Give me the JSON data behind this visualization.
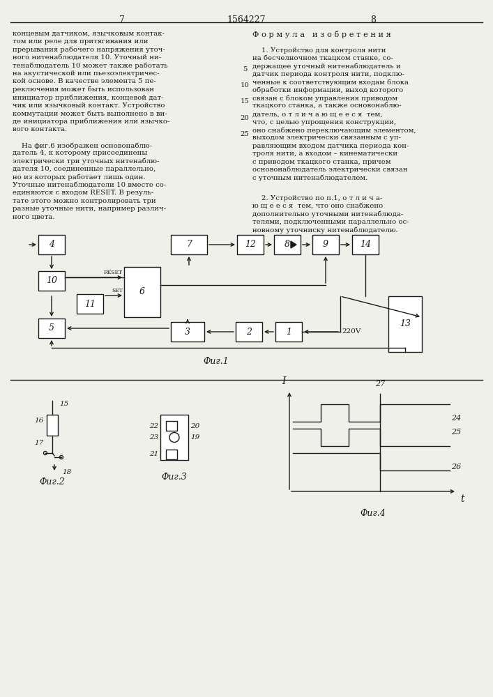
{
  "page_title": "1564227",
  "page_left": "7",
  "page_right": "8",
  "bg_color": "#f0f0eb",
  "text_color": "#1a1a1a",
  "left_text": [
    "концевым датчиком, язычковым контак-",
    "том или реле для притягивания или",
    "прерывания рабочего напряжения уточ-",
    "ного нитенаблюдателя 10. Уточный ни-",
    "тенаблюдатель 10 может также работать",
    "на акустической или пьезоэлектричес-",
    "кой основе. В качестве элемента 5 пе-",
    "реключения может быть использован",
    "инициатор приближения, концевой дат-",
    "чик или язычковый контакт. Устройство",
    "коммутации может быть выполнено в ви-",
    "де инициатора приближения или язычко-",
    "вого контакта."
  ],
  "left_text2": [
    "    На фиг.6 изображен основонаблю-",
    "датель 4, к которому присоединены",
    "электрически три уточных нитенаблю-",
    "дателя 10, соединенные параллельно,",
    "но из которых работает лишь один.",
    "Уточные нитенаблюдатели 10 вместе со-",
    "единяются с входом RESET. В резуль-",
    "тате этого можно контролировать три",
    "разные уточные нити, например различ-",
    "ного цвета."
  ],
  "right_header": "Ф о р м у л а   и з о б р е т е н и я",
  "right_text": [
    "    1. Устройство для контроля нити",
    "на бесчелночном ткацком станке, со-",
    "держащее уточный нитенаблюдатель и",
    "датчик периода контроля нити, подклю-",
    "ченные к соответствующим входам блока",
    "обработки информации, выход которого",
    "связан с блоком управления приводом",
    "ткацкого станка, а также основонаблю-",
    "датель, о т л и ч а ю щ е е с я  тем,",
    "что, с целью упрощения конструкции,",
    "оно снабжено переключающим элементом,",
    "выходом электрически связанным с уп-",
    "равляющим входом датчика периода кон-",
    "троля нити, а входом – кинематически",
    "с приводом ткацкого станка, причем",
    "основонаблюдатель электрически связан",
    "с уточным нитенаблюдателем."
  ],
  "right_text2": [
    "    2. Устройство по п.1, о т л и ч а-",
    "ю щ е е с я  тем, что оно снабжено",
    "дополнительно уточными нитенаблюда-",
    "телями, подключенными параллельно ос-",
    "новному уточниску нитенаблюдателю."
  ],
  "line_numbers": [
    "5",
    "10",
    "15",
    "20",
    "25"
  ],
  "fig1_label": "Фиг.1",
  "fig2_label": "Фиг.2",
  "fig3_label": "Фиг.3",
  "fig4_label": "Фиг.4"
}
